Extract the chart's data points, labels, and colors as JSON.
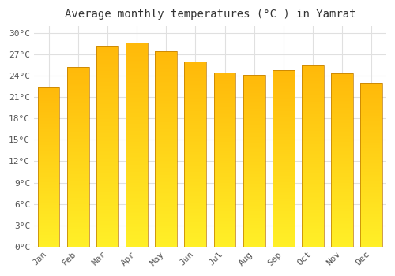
{
  "title": "Average monthly temperatures (°C ) in Yamrat",
  "months": [
    "Jan",
    "Feb",
    "Mar",
    "Apr",
    "May",
    "Jun",
    "Jul",
    "Aug",
    "Sep",
    "Oct",
    "Nov",
    "Dec"
  ],
  "temperatures": [
    22.5,
    25.2,
    28.2,
    28.7,
    27.5,
    26.0,
    24.5,
    24.2,
    24.8,
    25.5,
    24.4,
    23.0
  ],
  "bar_color": "#FFA820",
  "bar_edge_color": "#CC8800",
  "bar_highlight": "#FFD060",
  "ylim": [
    0,
    31
  ],
  "yticks": [
    0,
    3,
    6,
    9,
    12,
    15,
    18,
    21,
    24,
    27,
    30
  ],
  "ytick_labels": [
    "0°C",
    "3°C",
    "6°C",
    "9°C",
    "12°C",
    "15°C",
    "18°C",
    "21°C",
    "24°C",
    "27°C",
    "30°C"
  ],
  "background_color": "#ffffff",
  "grid_color": "#e0e0e0",
  "title_fontsize": 10,
  "tick_fontsize": 8,
  "title_color": "#333333",
  "tick_color": "#555555",
  "bar_width": 0.75
}
